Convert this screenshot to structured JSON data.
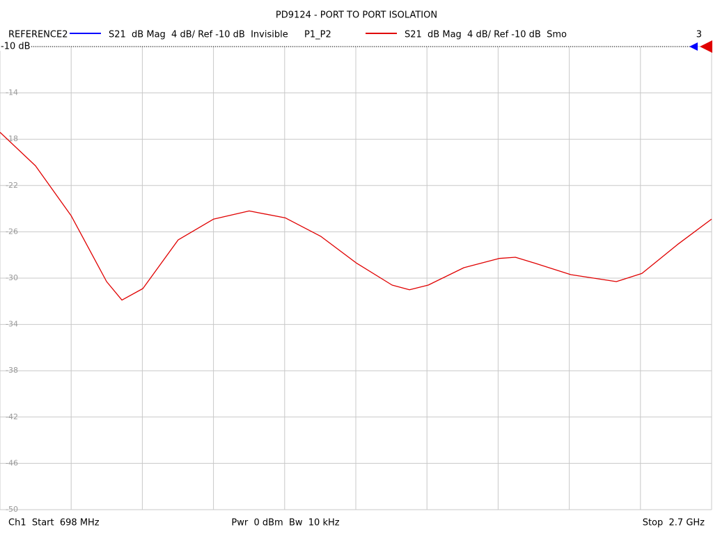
{
  "chart_data": {
    "type": "line",
    "title": "PD9124 - PORT TO PORT ISOLATION",
    "reference_trace": {
      "name": "REFERENCE2",
      "color": "#0000ff",
      "description": "S21  dB Mag  4 dB/ Ref -10 dB  Invisible"
    },
    "series": [
      {
        "name": "P1_P2",
        "color": "#e00000",
        "description": "S21  dB Mag  4 dB/ Ref -10 dB  Smo",
        "values": [
          -17.4,
          -20.3,
          -24.6,
          -30.3,
          -31.9,
          -30.9,
          -26.7,
          -24.9,
          -24.2,
          -24.8,
          -26.4,
          -28.7,
          -30.6,
          -31.0,
          -30.6,
          -29.1,
          -28.3,
          -28.2,
          -28.7,
          -29.7,
          -30.3,
          -29.6,
          -27.1,
          -24.9
        ]
      }
    ],
    "x": [
      698,
      798,
      898,
      998,
      1041,
      1100,
      1199,
      1299,
      1399,
      1501,
      1601,
      1701,
      1801,
      1850,
      1903,
      2003,
      2102,
      2148,
      2202,
      2304,
      2432,
      2504,
      2604,
      2700
    ],
    "xlim": [
      698,
      2700
    ],
    "xticks": [
      698,
      898.2,
      1098.4,
      1298.6,
      1498.8,
      1699,
      1899.2,
      2099.4,
      2299.6,
      2499.8,
      2700
    ],
    "ylim": [
      -50,
      -10
    ],
    "yticks": [
      -10,
      -14,
      -18,
      -22,
      -26,
      -30,
      -34,
      -38,
      -42,
      -46,
      -50
    ],
    "grid": true,
    "reference_label": "-10 dB",
    "trace_count": "3",
    "start_label": "Ch1  Start  698 MHz",
    "power_label": "Pwr  0 dBm  Bw  10 kHz",
    "stop_label": "Stop  2.7 GHz"
  }
}
